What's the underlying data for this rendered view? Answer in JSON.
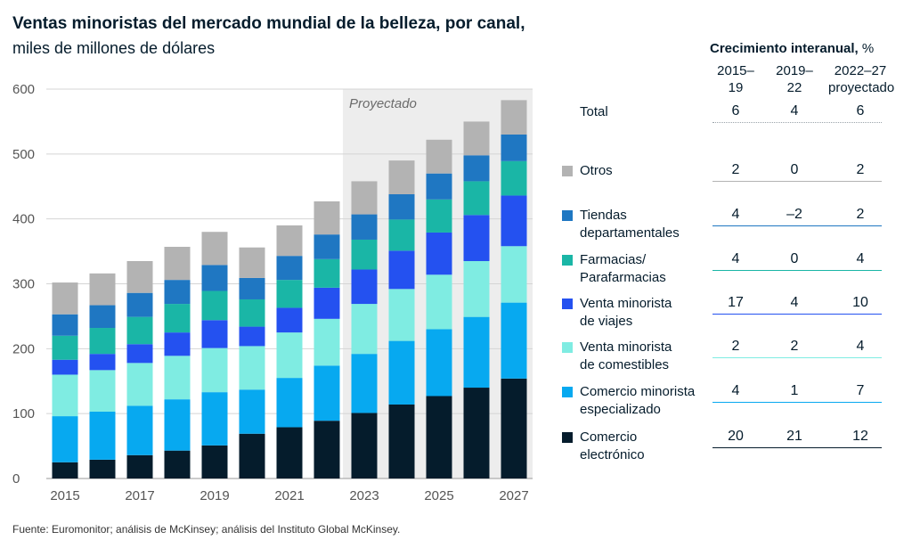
{
  "title": "Ventas minoristas del mercado mundial de la belleza, por canal,",
  "subtitle": "miles de millones de dólares",
  "source": "Fuente: Euromonitor; análisis de McKinsey; análisis del Instituto Global McKinsey.",
  "projected_label": "Proyectado",
  "growth_table": {
    "title": "Crecimiento interanual,",
    "unit": "%",
    "columns": [
      "2015–\n19",
      "2019–\n22",
      "2022–27\nproyectado"
    ],
    "rows": [
      {
        "label": "Total",
        "values": [
          "6",
          "4",
          "6"
        ],
        "color": "",
        "rule": "#9aa3aa"
      },
      {
        "label": "Otros",
        "values": [
          "2",
          "0",
          "2"
        ],
        "color": "#b3b3b3",
        "rule": "#b3b3b3"
      },
      {
        "label": "Tiendas\ndepartamentales",
        "values": [
          "4",
          "–2",
          "2"
        ],
        "color": "#1f77c2",
        "rule": "#1f77c2"
      },
      {
        "label": "Farmacias/\nParafarmacias",
        "values": [
          "4",
          "0",
          "4"
        ],
        "color": "#1ab6a6",
        "rule": "#1ab6a6"
      },
      {
        "label": "Venta minorista\nde viajes",
        "values": [
          "17",
          "4",
          "10"
        ],
        "color": "#2451f0",
        "rule": "#2451f0"
      },
      {
        "label": "Venta minorista\nde comestibles",
        "values": [
          "2",
          "2",
          "4"
        ],
        "color": "#7fece2",
        "rule": "#7fece2"
      },
      {
        "label": "Comercio minorista\nespecializado",
        "values": [
          "4",
          "1",
          "7"
        ],
        "color": "#07a9f0",
        "rule": "#07a9f0"
      },
      {
        "label": "Comercio\nelectrónico",
        "values": [
          "20",
          "21",
          "12"
        ],
        "color": "#051c2c",
        "rule": "#051c2c"
      }
    ]
  },
  "chart_data": {
    "type": "bar",
    "stacked": true,
    "categories": [
      "2015",
      "2016",
      "2017",
      "2018",
      "2019",
      "2020",
      "2021",
      "2022",
      "2023",
      "2024",
      "2025",
      "2026",
      "2027"
    ],
    "x_tick_labels": [
      "2015",
      "2017",
      "2019",
      "2021",
      "2023",
      "2025",
      "2027"
    ],
    "ylim": [
      0,
      600
    ],
    "y_ticks": [
      0,
      100,
      200,
      300,
      400,
      500,
      600
    ],
    "grid": true,
    "projected_from": "2023",
    "series": [
      {
        "name": "Comercio electrónico",
        "color": "#051c2c",
        "values": [
          25,
          29,
          36,
          43,
          51,
          69,
          79,
          89,
          101,
          114,
          127,
          140,
          154
        ]
      },
      {
        "name": "Comercio minorista especializado",
        "color": "#07a9f0",
        "values": [
          71,
          74,
          76,
          79,
          82,
          68,
          76,
          85,
          91,
          98,
          103,
          109,
          117
        ]
      },
      {
        "name": "Venta minorista de comestibles",
        "color": "#7fece2",
        "values": [
          64,
          64,
          66,
          67,
          68,
          67,
          70,
          72,
          77,
          80,
          84,
          86,
          87
        ]
      },
      {
        "name": "Venta minorista de viajes",
        "color": "#2451f0",
        "values": [
          23,
          25,
          29,
          36,
          43,
          30,
          38,
          48,
          53,
          59,
          65,
          71,
          78
        ]
      },
      {
        "name": "Farmacias/Parafarmacias",
        "color": "#1ab6a6",
        "values": [
          37,
          40,
          42,
          44,
          45,
          42,
          43,
          44,
          46,
          48,
          51,
          52,
          53
        ]
      },
      {
        "name": "Tiendas departamentales",
        "color": "#1f77c2",
        "values": [
          33,
          35,
          37,
          37,
          40,
          33,
          37,
          38,
          39,
          39,
          40,
          40,
          41
        ]
      },
      {
        "name": "Otros",
        "color": "#b3b3b3",
        "values": [
          49,
          49,
          49,
          51,
          51,
          47,
          47,
          51,
          51,
          52,
          52,
          52,
          53
        ]
      }
    ]
  }
}
